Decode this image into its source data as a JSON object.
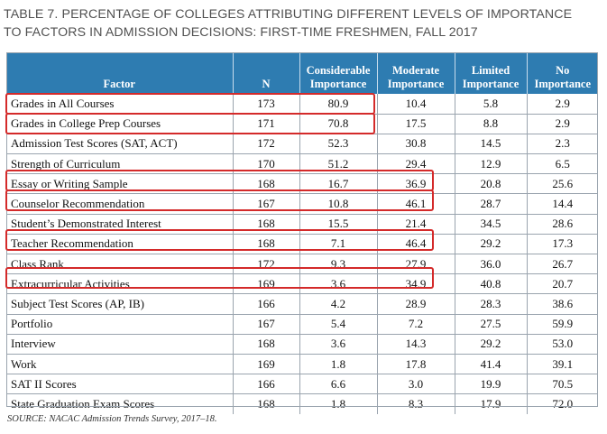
{
  "title": {
    "line1": "TABLE 7. PERCENTAGE OF COLLEGES ATTRIBUTING DIFFERENT LEVELS OF IMPORTANCE",
    "line2": "TO FACTORS IN ADMISSION DECISIONS: FIRST-TIME FRESHMEN, FALL 2017"
  },
  "table": {
    "headers": {
      "factor": "Factor",
      "n": "N",
      "considerable_1": "Considerable",
      "considerable_2": "Importance",
      "moderate_1": "Moderate",
      "moderate_2": "Importance",
      "limited_1": "Limited",
      "limited_2": "Importance",
      "no_1": "No",
      "no_2": "Importance"
    },
    "rows": [
      [
        "Grades in All Courses",
        "173",
        "80.9",
        "10.4",
        "5.8",
        "2.9"
      ],
      [
        "Grades in College Prep Courses",
        "171",
        "70.8",
        "17.5",
        "8.8",
        "2.9"
      ],
      [
        "Admission Test Scores (SAT, ACT)",
        "172",
        "52.3",
        "30.8",
        "14.5",
        "2.3"
      ],
      [
        "Strength of Curriculum",
        "170",
        "51.2",
        "29.4",
        "12.9",
        "6.5"
      ],
      [
        "Essay or Writing Sample",
        "168",
        "16.7",
        "36.9",
        "20.8",
        "25.6"
      ],
      [
        "Counselor Recommendation",
        "167",
        "10.8",
        "46.1",
        "28.7",
        "14.4"
      ],
      [
        "Student’s Demonstrated Interest",
        "168",
        "15.5",
        "21.4",
        "34.5",
        "28.6"
      ],
      [
        "Teacher Recommendation",
        "168",
        "7.1",
        "46.4",
        "29.2",
        "17.3"
      ],
      [
        "Class Rank",
        "172",
        "9.3",
        "27.9",
        "36.0",
        "26.7"
      ],
      [
        "Extracurricular Activities",
        "169",
        "3.6",
        "34.9",
        "40.8",
        "20.7"
      ],
      [
        "Subject Test Scores (AP, IB)",
        "166",
        "4.2",
        "28.9",
        "28.3",
        "38.6"
      ],
      [
        "Portfolio",
        "167",
        "5.4",
        "7.2",
        "27.5",
        "59.9"
      ],
      [
        "Interview",
        "168",
        "3.6",
        "14.3",
        "29.2",
        "53.0"
      ],
      [
        "Work",
        "169",
        "1.8",
        "17.8",
        "41.4",
        "39.1"
      ],
      [
        "SAT II Scores",
        "166",
        "6.6",
        "3.0",
        "19.9",
        "70.5"
      ],
      [
        "State Graduation Exam Scores",
        "168",
        "1.8",
        "8.3",
        "17.9",
        "72.0"
      ]
    ]
  },
  "highlight_color": "#d42a2a",
  "header_color": "#2e7cb1",
  "source": "SOURCE: NACAC Admission Trends Survey, 2017–18."
}
